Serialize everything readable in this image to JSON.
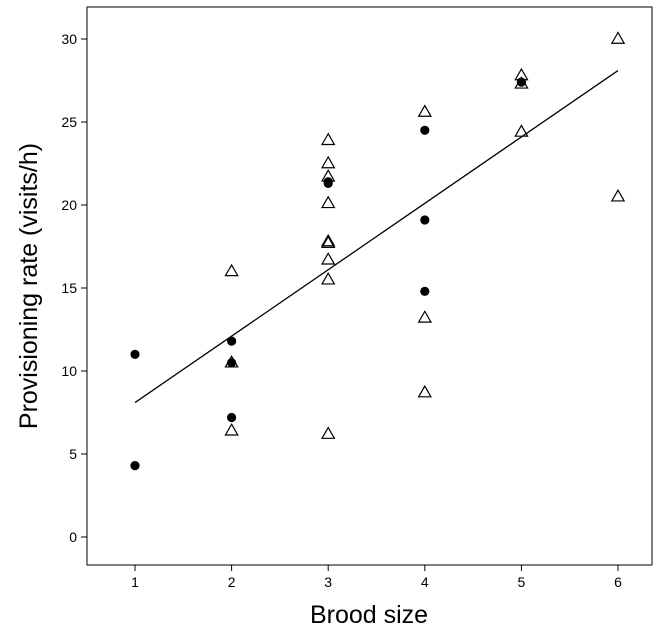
{
  "chart_data": {
    "type": "scatter",
    "title": "",
    "xlabel": "Brood size",
    "ylabel": "Provisioning rate (visits/h)",
    "xlim": [
      0.5,
      6.5
    ],
    "ylim": [
      -1.5,
      32
    ],
    "x_ticks": [
      1,
      2,
      3,
      4,
      5,
      6
    ],
    "y_ticks": [
      0,
      5,
      10,
      15,
      20,
      25,
      30
    ],
    "grid": false,
    "legend": "none",
    "series": [
      {
        "marker": "filled-circle",
        "color": "#000000",
        "points": [
          [
            1,
            11.0
          ],
          [
            1,
            4.3
          ],
          [
            2,
            11.8
          ],
          [
            2,
            10.5
          ],
          [
            2,
            7.2
          ],
          [
            3,
            21.4
          ],
          [
            3,
            21.3
          ],
          [
            4,
            24.5
          ],
          [
            4,
            19.1
          ],
          [
            4,
            14.8
          ],
          [
            5,
            27.4
          ]
        ]
      },
      {
        "marker": "open-triangle",
        "color": "#000000",
        "points": [
          [
            2,
            16.0
          ],
          [
            2,
            10.5
          ],
          [
            2,
            6.4
          ],
          [
            3,
            23.9
          ],
          [
            3,
            22.5
          ],
          [
            3,
            21.7
          ],
          [
            3,
            20.1
          ],
          [
            3,
            17.8
          ],
          [
            3,
            17.7
          ],
          [
            3,
            16.7
          ],
          [
            3,
            15.5
          ],
          [
            3,
            6.2
          ],
          [
            4,
            25.6
          ],
          [
            4,
            13.2
          ],
          [
            4,
            8.7
          ],
          [
            5,
            27.8
          ],
          [
            5,
            27.3
          ],
          [
            5,
            24.4
          ],
          [
            6,
            30.0
          ],
          [
            6,
            20.5
          ]
        ]
      }
    ],
    "fit_line": {
      "type": "linear",
      "x": [
        1,
        6
      ],
      "y": [
        8.1,
        28.1
      ]
    }
  }
}
